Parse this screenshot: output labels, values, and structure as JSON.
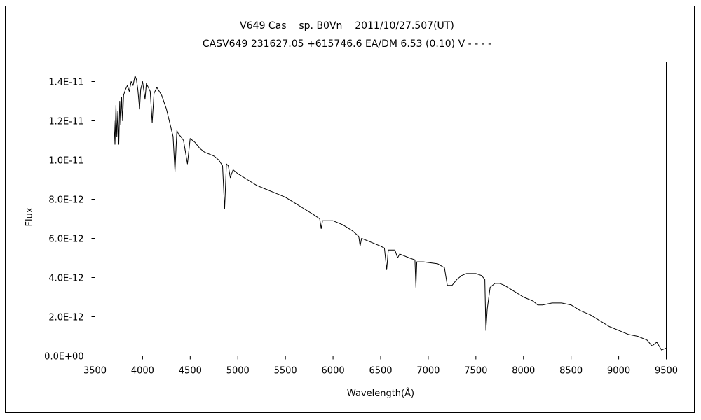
{
  "chart_data": {
    "type": "line",
    "title": "V649 Cas    sp. B0Vn    2011/10/27.507(UT)",
    "subtitle": "CASV649 231627.05 +615746.6 EA/DM 6.53 (0.10) V - - - -",
    "xlabel": "Wavelength(Å)",
    "ylabel": "Flux",
    "xlim": [
      3500,
      9500
    ],
    "ylim": [
      0,
      1.5e-11
    ],
    "xticks": [
      3500,
      4000,
      4500,
      5000,
      5500,
      6000,
      6500,
      7000,
      7500,
      8000,
      8500,
      9000,
      9500
    ],
    "xtick_labels": [
      "3500",
      "4000",
      "4500",
      "5000",
      "5500",
      "6000",
      "6500",
      "7000",
      "7500",
      "8000",
      "8500",
      "9000",
      "9500"
    ],
    "yticks": [
      0,
      2e-12,
      4e-12,
      6e-12,
      8e-12,
      1e-11,
      1.2e-11,
      1.4e-11
    ],
    "ytick_labels": [
      "0.0E+00",
      "2.0E-12",
      "4.0E-12",
      "6.0E-12",
      "8.0E-12",
      "1.0E-11",
      "1.2E-11",
      "1.4E-11"
    ],
    "grid": false,
    "legend": "none",
    "line_color": "#000000",
    "series": [
      {
        "x": [
          3700,
          3710,
          3720,
          3730,
          3740,
          3750,
          3760,
          3770,
          3780,
          3790,
          3800,
          3820,
          3840,
          3860,
          3880,
          3900,
          3920,
          3935,
          3950,
          3968,
          3980,
          4000,
          4026,
          4040,
          4060,
          4080,
          4101,
          4120,
          4150,
          4200,
          4250,
          4300,
          4320,
          4340,
          4360,
          4380,
          4400,
          4430,
          4471,
          4500,
          4550,
          4600,
          4650,
          4700,
          4750,
          4800,
          4840,
          4861,
          4880,
          4900,
          4921,
          4950,
          5000,
          5100,
          5200,
          5300,
          5400,
          5500,
          5600,
          5700,
          5800,
          5860,
          5876,
          5890,
          5950,
          6000,
          6100,
          6200,
          6270,
          6284,
          6300,
          6400,
          6500,
          6540,
          6563,
          6580,
          6650,
          6678,
          6700,
          6800,
          6860,
          6870,
          6880,
          6950,
          7100,
          7170,
          7200,
          7250,
          7300,
          7350,
          7400,
          7500,
          7560,
          7594,
          7605,
          7620,
          7650,
          7700,
          7750,
          7800,
          7900,
          8000,
          8100,
          8150,
          8200,
          8300,
          8400,
          8500,
          8600,
          8700,
          8800,
          8900,
          9000,
          9100,
          9200,
          9300,
          9350,
          9400,
          9450,
          9500
        ],
        "y": [
          1.2e-11,
          1.08e-11,
          1.28e-11,
          1.12e-11,
          1.25e-11,
          1.08e-11,
          1.3e-11,
          1.18e-11,
          1.32e-11,
          1.2e-11,
          1.33e-11,
          1.36e-11,
          1.38e-11,
          1.35e-11,
          1.4e-11,
          1.38e-11,
          1.43e-11,
          1.41e-11,
          1.36e-11,
          1.26e-11,
          1.36e-11,
          1.4e-11,
          1.31e-11,
          1.39e-11,
          1.37e-11,
          1.35e-11,
          1.19e-11,
          1.34e-11,
          1.37e-11,
          1.33e-11,
          1.26e-11,
          1.16e-11,
          1.12e-11,
          9.4e-12,
          1.15e-11,
          1.13e-11,
          1.12e-11,
          1.1e-11,
          9.8e-12,
          1.11e-11,
          1.09e-11,
          1.06e-11,
          1.04e-11,
          1.03e-11,
          1.02e-11,
          1e-11,
          9.7e-12,
          7.5e-12,
          9.8e-12,
          9.7e-12,
          9.1e-12,
          9.5e-12,
          9.3e-12,
          9e-12,
          8.7e-12,
          8.5e-12,
          8.3e-12,
          8.1e-12,
          7.8e-12,
          7.5e-12,
          7.2e-12,
          7e-12,
          6.5e-12,
          6.9e-12,
          6.9e-12,
          6.9e-12,
          6.7e-12,
          6.4e-12,
          6.1e-12,
          5.6e-12,
          6e-12,
          5.8e-12,
          5.6e-12,
          5.5e-12,
          4.4e-12,
          5.4e-12,
          5.4e-12,
          5e-12,
          5.2e-12,
          5e-12,
          4.9e-12,
          3.5e-12,
          4.8e-12,
          4.8e-12,
          4.7e-12,
          4.5e-12,
          3.6e-12,
          3.6e-12,
          3.9e-12,
          4.1e-12,
          4.2e-12,
          4.2e-12,
          4.1e-12,
          3.9e-12,
          1.3e-12,
          2.4e-12,
          3.5e-12,
          3.7e-12,
          3.7e-12,
          3.6e-12,
          3.3e-12,
          3e-12,
          2.8e-12,
          2.6e-12,
          2.6e-12,
          2.7e-12,
          2.7e-12,
          2.6e-12,
          2.3e-12,
          2.1e-12,
          1.8e-12,
          1.5e-12,
          1.3e-12,
          1.1e-12,
          1e-12,
          8e-13,
          5e-13,
          7e-13,
          3e-13,
          4e-13
        ]
      }
    ]
  }
}
